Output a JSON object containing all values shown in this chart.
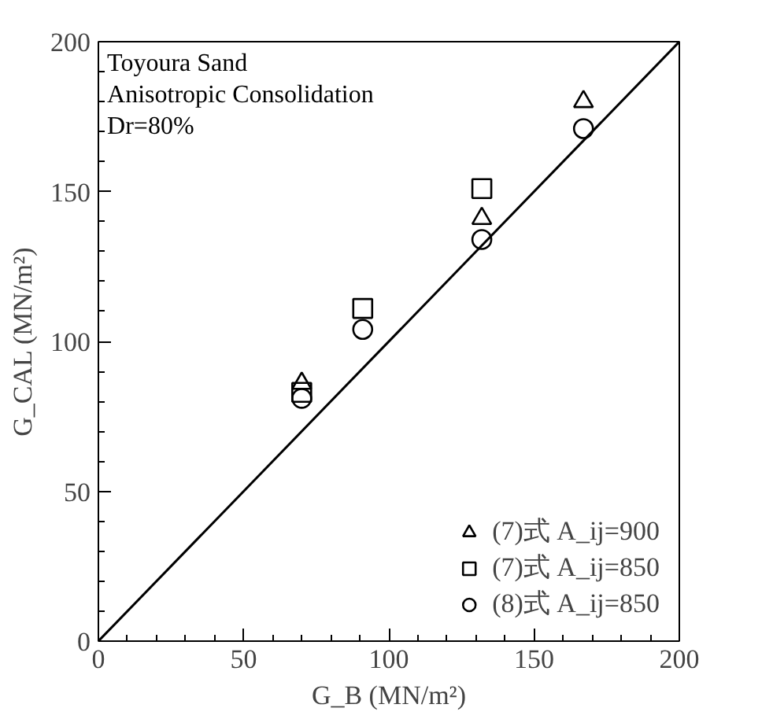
{
  "chart_data": {
    "type": "scatter",
    "xlabel": "G_B (MN/m²)",
    "ylabel": "G_CAL (MN/m²)",
    "annotations": [
      "Toyoura Sand",
      "Anisotropic Consolidation",
      "Dr=80%"
    ],
    "xlim": [
      0,
      200
    ],
    "ylim": [
      0,
      200
    ],
    "xticks": [
      0,
      50,
      100,
      150,
      200
    ],
    "yticks": [
      0,
      50,
      100,
      150,
      200
    ],
    "grid": false,
    "legend": "bottom right",
    "series": [
      {
        "name": "(7)式 A_ij=900",
        "color": "#000000",
        "marker": "triangle",
        "x": [
          70,
          132,
          167
        ],
        "values": [
          86,
          141,
          180
        ]
      },
      {
        "name": "(7)式 A_ij=850",
        "color": "#000000",
        "marker": "square",
        "x": [
          70,
          91,
          132
        ],
        "values": [
          83,
          111,
          151
        ]
      },
      {
        "name": "(8)式 A_ij=850",
        "color": "#000000",
        "marker": "circle",
        "x": [
          70,
          91,
          132,
          167
        ],
        "values": [
          81,
          104,
          134,
          171
        ]
      },
      {
        "type": "line",
        "color": "#000000",
        "marker": "none",
        "line_style": "solid",
        "x": [
          0,
          200
        ],
        "values": [
          0,
          200
        ]
      }
    ]
  }
}
